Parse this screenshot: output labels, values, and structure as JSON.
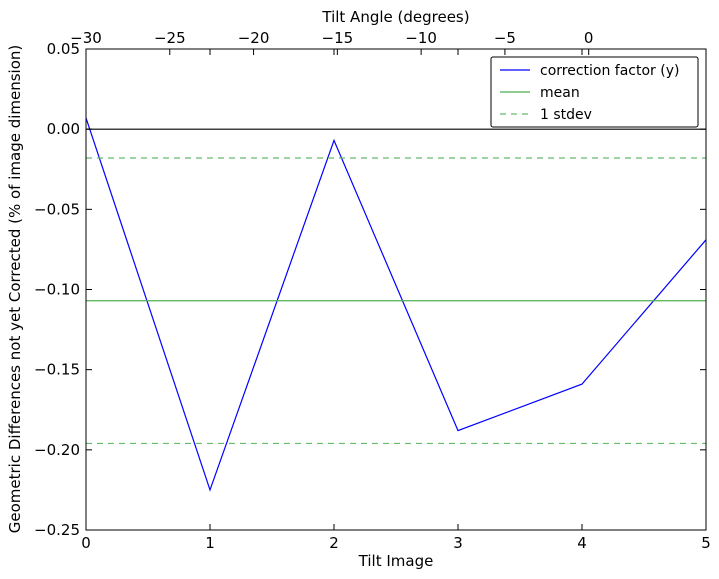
{
  "chart_data": {
    "type": "line",
    "xlabel": "Tilt Image",
    "ylabel": "Geometric Differences not yet Corrected (% of image dimension)",
    "top_xlabel": "Tilt Angle (degrees)",
    "xlim": [
      0,
      5
    ],
    "ylim": [
      -0.25,
      0.05
    ],
    "top_xlim": [
      -30,
      7
    ],
    "x_ticks": [
      0,
      1,
      2,
      3,
      4,
      5
    ],
    "x_tick_labels": [
      "0",
      "1",
      "2",
      "3",
      "4",
      "5"
    ],
    "y_ticks": [
      0.05,
      0.0,
      -0.05,
      -0.1,
      -0.15,
      -0.2,
      -0.25
    ],
    "y_tick_labels": [
      "0.05",
      "0.00",
      "−0.05",
      "−0.10",
      "−0.15",
      "−0.20",
      "−0.25"
    ],
    "top_ticks": [
      -30,
      -25,
      -20,
      -15,
      -10,
      -5,
      0
    ],
    "top_tick_labels": [
      "−30",
      "−25",
      "−20",
      "−15",
      "−10",
      "−5",
      "0"
    ],
    "grid": false,
    "legend_position": "top-right",
    "series": [
      {
        "name": "correction factor (y)",
        "color": "#0000ff",
        "style": "solid",
        "x": [
          0,
          1,
          2,
          3,
          4,
          5
        ],
        "values": [
          0.007,
          -0.225,
          -0.007,
          -0.188,
          -0.159,
          -0.069
        ]
      },
      {
        "name": "mean",
        "color": "#4caf50",
        "style": "solid",
        "x": [
          0,
          5
        ],
        "values": [
          -0.107,
          -0.107
        ]
      },
      {
        "name": "1 stdev",
        "color": "#66bb6a",
        "style": "dashed",
        "x": [
          0,
          5
        ],
        "values": [
          -0.018,
          -0.018
        ],
        "extra_values": [
          -0.196,
          -0.196
        ]
      }
    ],
    "reference_lines": [
      {
        "axis": "y",
        "value": 0.0,
        "color": "#000000"
      }
    ]
  }
}
